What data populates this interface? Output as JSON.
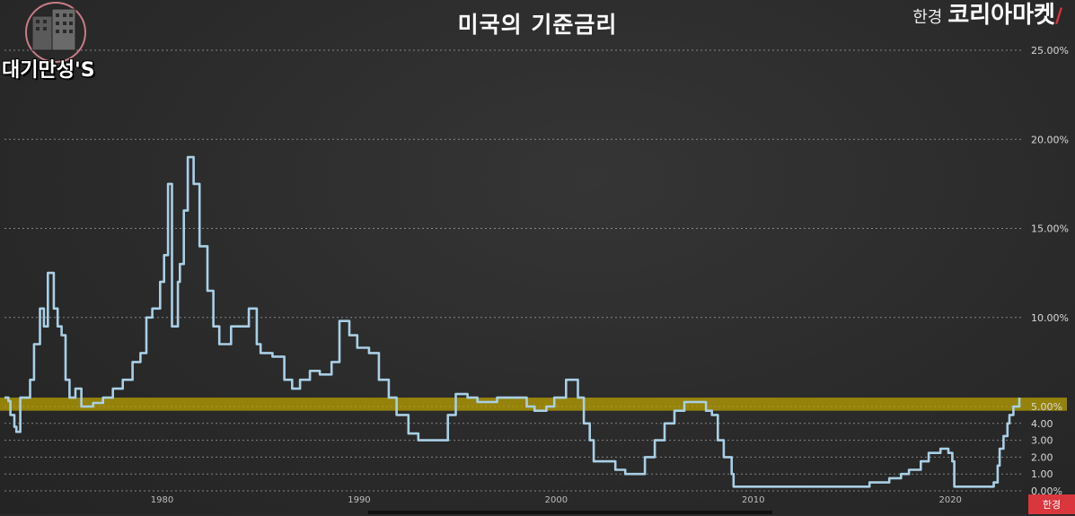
{
  "header": {
    "title": "미국의 기준금리",
    "brand_sub": "한경",
    "brand_main": "코리아마켓"
  },
  "logo": {
    "text": "대기만성'S"
  },
  "badge": {
    "text": "한경"
  },
  "colors": {
    "background": "#2b2b2b",
    "line": "#a9cfe6",
    "highlight_band": "#b8a000",
    "grid": "#cfcfcf"
  },
  "chart_data": {
    "type": "line",
    "title": "미국의 기준금리",
    "xlabel": "",
    "ylabel": "",
    "xlim": [
      1972,
      2023.5
    ],
    "ylim": [
      0,
      25
    ],
    "grid": true,
    "y_ticks": [
      {
        "v": 25,
        "label": "25.00%"
      },
      {
        "v": 20,
        "label": "20.00%"
      },
      {
        "v": 15,
        "label": "15.00%"
      },
      {
        "v": 10,
        "label": "10.00%"
      },
      {
        "v": 5,
        "label": "5.00%"
      },
      {
        "v": 4,
        "label": "4.00"
      },
      {
        "v": 3,
        "label": "3.00"
      },
      {
        "v": 2,
        "label": "2.00"
      },
      {
        "v": 1,
        "label": "1.00"
      },
      {
        "v": 0,
        "label": "0.00%"
      }
    ],
    "x_ticks": [
      {
        "v": 1980,
        "label": "1980"
      },
      {
        "v": 1990,
        "label": "1990"
      },
      {
        "v": 2000,
        "label": "2000"
      },
      {
        "v": 2010,
        "label": "2010"
      },
      {
        "v": 2020,
        "label": "2020"
      }
    ],
    "highlight_band": [
      4.75,
      5.5
    ],
    "series": [
      {
        "name": "",
        "x": [
          1972.0,
          1972.2,
          1972.3,
          1972.5,
          1972.6,
          1972.8,
          1973.0,
          1973.3,
          1973.5,
          1973.8,
          1974.0,
          1974.2,
          1974.5,
          1974.7,
          1974.9,
          1975.1,
          1975.3,
          1975.6,
          1975.9,
          1976.2,
          1976.5,
          1977.0,
          1977.5,
          1978.0,
          1978.5,
          1978.9,
          1979.2,
          1979.5,
          1979.9,
          1980.1,
          1980.3,
          1980.5,
          1980.8,
          1980.9,
          1981.1,
          1981.3,
          1981.6,
          1981.9,
          1982.3,
          1982.6,
          1982.9,
          1983.5,
          1984.0,
          1984.4,
          1984.8,
          1985.0,
          1985.6,
          1986.2,
          1986.6,
          1987.0,
          1987.5,
          1988.0,
          1988.6,
          1989.0,
          1989.5,
          1989.9,
          1990.5,
          1991.0,
          1991.5,
          1991.9,
          1992.5,
          1993.0,
          1994.0,
          1994.5,
          1994.9,
          1995.5,
          1996.0,
          1997.0,
          1998.0,
          1998.5,
          1998.9,
          1999.5,
          1999.9,
          2000.5,
          2000.9,
          2001.1,
          2001.4,
          2001.7,
          2001.9,
          2002.5,
          2003.0,
          2003.5,
          2004.0,
          2004.5,
          2005.0,
          2005.5,
          2006.0,
          2006.5,
          2007.0,
          2007.6,
          2007.9,
          2008.2,
          2008.5,
          2008.9,
          2009.0,
          2010.0,
          2012.0,
          2014.0,
          2015.9,
          2016.9,
          2017.5,
          2017.9,
          2018.5,
          2018.9,
          2019.5,
          2019.9,
          2020.1,
          2020.2,
          2021.0,
          2022.0,
          2022.2,
          2022.4,
          2022.5,
          2022.7,
          2022.9,
          2023.0,
          2023.2,
          2023.5
        ],
        "y": [
          5.5,
          5.3,
          4.5,
          3.8,
          3.5,
          5.5,
          5.5,
          6.5,
          8.5,
          10.5,
          9.5,
          12.5,
          10.5,
          9.5,
          9.0,
          6.5,
          5.5,
          6.0,
          5.0,
          5.0,
          5.2,
          5.5,
          6.0,
          6.5,
          7.5,
          8.0,
          10.0,
          10.5,
          12.0,
          13.5,
          17.5,
          9.5,
          12.0,
          13.0,
          16.0,
          19.0,
          17.5,
          14.0,
          11.5,
          9.5,
          8.5,
          9.5,
          9.5,
          10.5,
          8.5,
          8.0,
          7.8,
          6.5,
          6.0,
          6.5,
          7.0,
          6.8,
          7.5,
          9.8,
          9.0,
          8.3,
          8.0,
          6.5,
          5.5,
          4.5,
          3.4,
          3.0,
          3.0,
          4.5,
          5.7,
          5.5,
          5.25,
          5.5,
          5.5,
          5.0,
          4.75,
          5.0,
          5.5,
          6.5,
          6.5,
          5.5,
          4.0,
          3.0,
          1.75,
          1.75,
          1.25,
          1.0,
          1.0,
          2.0,
          3.0,
          4.0,
          4.75,
          5.25,
          5.25,
          4.75,
          4.5,
          3.0,
          2.0,
          1.0,
          0.25,
          0.25,
          0.25,
          0.25,
          0.5,
          0.75,
          1.0,
          1.25,
          1.75,
          2.25,
          2.5,
          2.25,
          1.75,
          0.25,
          0.25,
          0.25,
          0.5,
          1.5,
          2.5,
          3.25,
          4.0,
          4.5,
          5.0,
          5.5
        ]
      }
    ]
  }
}
